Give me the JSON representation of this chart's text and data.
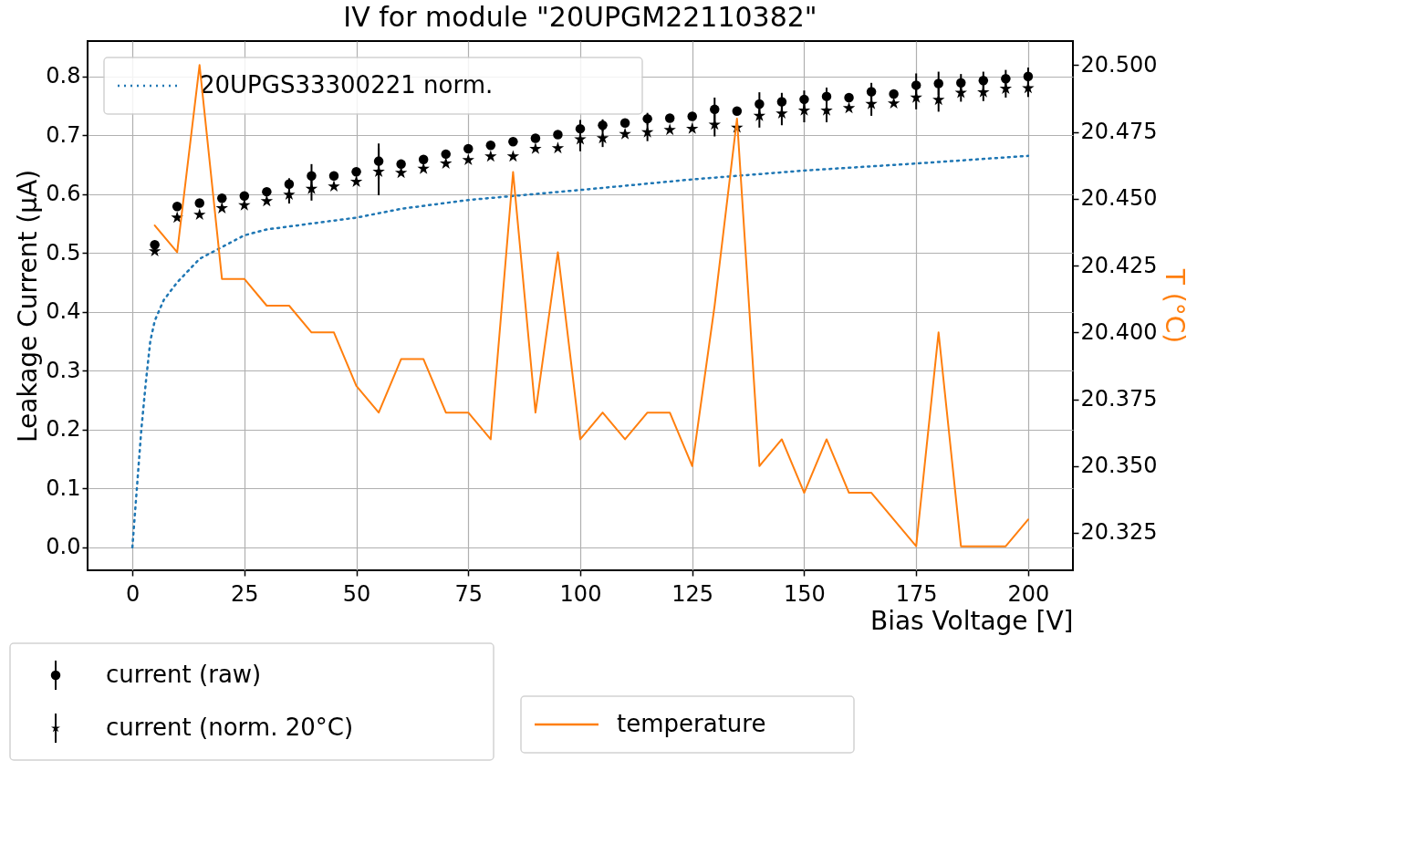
{
  "chart_data": {
    "type": "scatter",
    "title": "IV for module \"20UPGM22110382\"",
    "xlabel": "Bias Voltage [V]",
    "ylabel": "Leakage Current (μA)",
    "y2label": "T (°C)",
    "x": [
      5,
      10,
      15,
      20,
      25,
      30,
      35,
      40,
      45,
      50,
      55,
      60,
      65,
      70,
      75,
      80,
      85,
      90,
      95,
      100,
      105,
      110,
      115,
      120,
      125,
      130,
      135,
      140,
      145,
      150,
      155,
      160,
      165,
      170,
      175,
      180,
      185,
      190,
      195,
      200
    ],
    "series": [
      {
        "name": "20UPGS33300221 norm.",
        "type": "line",
        "line_style": "dotted",
        "marker": "none",
        "color": "#1f77b4",
        "x": [
          0,
          1,
          2,
          3,
          4,
          5,
          7,
          10,
          15,
          20,
          25,
          30,
          40,
          50,
          60,
          75,
          100,
          125,
          150,
          175,
          200
        ],
        "values": [
          0,
          0.1,
          0.2,
          0.28,
          0.35,
          0.385,
          0.42,
          0.45,
          0.49,
          0.51,
          0.53,
          0.54,
          0.55,
          0.56,
          0.575,
          0.59,
          0.607,
          0.625,
          0.64,
          0.652,
          0.665
        ]
      },
      {
        "name": "current (raw)",
        "marker": "circle",
        "color": "#000000",
        "values": [
          0.514,
          0.579,
          0.585,
          0.593,
          0.597,
          0.604,
          0.617,
          0.631,
          0.631,
          0.638,
          0.656,
          0.651,
          0.659,
          0.668,
          0.677,
          0.683,
          0.689,
          0.695,
          0.701,
          0.711,
          0.717,
          0.721,
          0.728,
          0.729,
          0.732,
          0.744,
          0.741,
          0.753,
          0.757,
          0.761,
          0.766,
          0.764,
          0.774,
          0.77,
          0.785,
          0.788,
          0.789,
          0.793,
          0.796,
          0.8
        ],
        "errors": [
          null,
          null,
          null,
          null,
          null,
          null,
          0.01,
          0.02,
          null,
          null,
          0.03,
          null,
          null,
          null,
          null,
          null,
          null,
          null,
          null,
          0.015,
          0.01,
          null,
          0.01,
          null,
          null,
          0.02,
          null,
          0.02,
          0.015,
          0.015,
          0.015,
          null,
          0.015,
          null,
          0.02,
          0.02,
          0.015,
          0.015,
          0.015,
          0.015
        ]
      },
      {
        "name": "current (norm. 20°C)",
        "marker": "star",
        "color": "#000000",
        "values": [
          0.503,
          0.56,
          0.565,
          0.576,
          0.581,
          0.588,
          0.599,
          0.609,
          0.613,
          0.621,
          0.638,
          0.636,
          0.643,
          0.652,
          0.658,
          0.664,
          0.664,
          0.677,
          0.678,
          0.693,
          0.695,
          0.702,
          0.705,
          0.709,
          0.711,
          0.718,
          0.713,
          0.733,
          0.737,
          0.742,
          0.742,
          0.746,
          0.753,
          0.754,
          0.764,
          0.76,
          0.772,
          0.773,
          0.779,
          0.78
        ],
        "errors": [
          null,
          null,
          null,
          null,
          null,
          null,
          0.015,
          0.02,
          null,
          null,
          0.04,
          null,
          null,
          null,
          null,
          null,
          null,
          null,
          null,
          0.02,
          0.015,
          null,
          0.015,
          null,
          null,
          0.02,
          null,
          0.02,
          0.02,
          0.02,
          0.02,
          null,
          0.02,
          null,
          0.02,
          0.02,
          0.015,
          0.015,
          0.015,
          0.015
        ]
      },
      {
        "name": "temperature",
        "type": "line",
        "line_style": "solid",
        "marker": "none",
        "axis": "y2",
        "color": "#ff7f0e",
        "values": [
          20.44,
          20.43,
          20.5,
          20.42,
          20.42,
          20.41,
          20.41,
          20.4,
          20.4,
          20.38,
          20.37,
          20.39,
          20.39,
          20.37,
          20.37,
          20.36,
          20.46,
          20.37,
          20.43,
          20.36,
          20.37,
          20.36,
          20.37,
          20.37,
          20.35,
          20.41,
          20.48,
          20.35,
          20.36,
          20.34,
          20.36,
          20.34,
          20.34,
          20.33,
          20.32,
          20.4,
          20.32,
          20.32,
          20.32,
          20.33
        ]
      }
    ],
    "xlim": [
      -10,
      210
    ],
    "xticks": [
      0,
      25,
      50,
      75,
      100,
      125,
      150,
      175,
      200
    ],
    "ylim": [
      -0.039,
      0.86
    ],
    "yticks": [
      {
        "value": 0,
        "label": "0.0"
      },
      {
        "value": 0.1,
        "label": "0.1"
      },
      {
        "value": 0.2,
        "label": "0.2"
      },
      {
        "value": 0.3,
        "label": "0.3"
      },
      {
        "value": 0.4,
        "label": "0.4"
      },
      {
        "value": 0.5,
        "label": "0.5"
      },
      {
        "value": 0.6,
        "label": "0.6"
      },
      {
        "value": 0.7,
        "label": "0.7"
      },
      {
        "value": 0.8,
        "label": "0.8"
      }
    ],
    "y2lim": [
      20.311,
      20.509
    ],
    "y2ticks": [
      {
        "value": 20.325,
        "label": "20.325"
      },
      {
        "value": 20.35,
        "label": "20.350"
      },
      {
        "value": 20.375,
        "label": "20.375"
      },
      {
        "value": 20.4,
        "label": "20.400"
      },
      {
        "value": 20.425,
        "label": "20.425"
      },
      {
        "value": 20.45,
        "label": "20.450"
      },
      {
        "value": 20.475,
        "label": "20.475"
      },
      {
        "value": 20.5,
        "label": "20.500"
      }
    ],
    "grid": true,
    "legend": "bottom left"
  }
}
